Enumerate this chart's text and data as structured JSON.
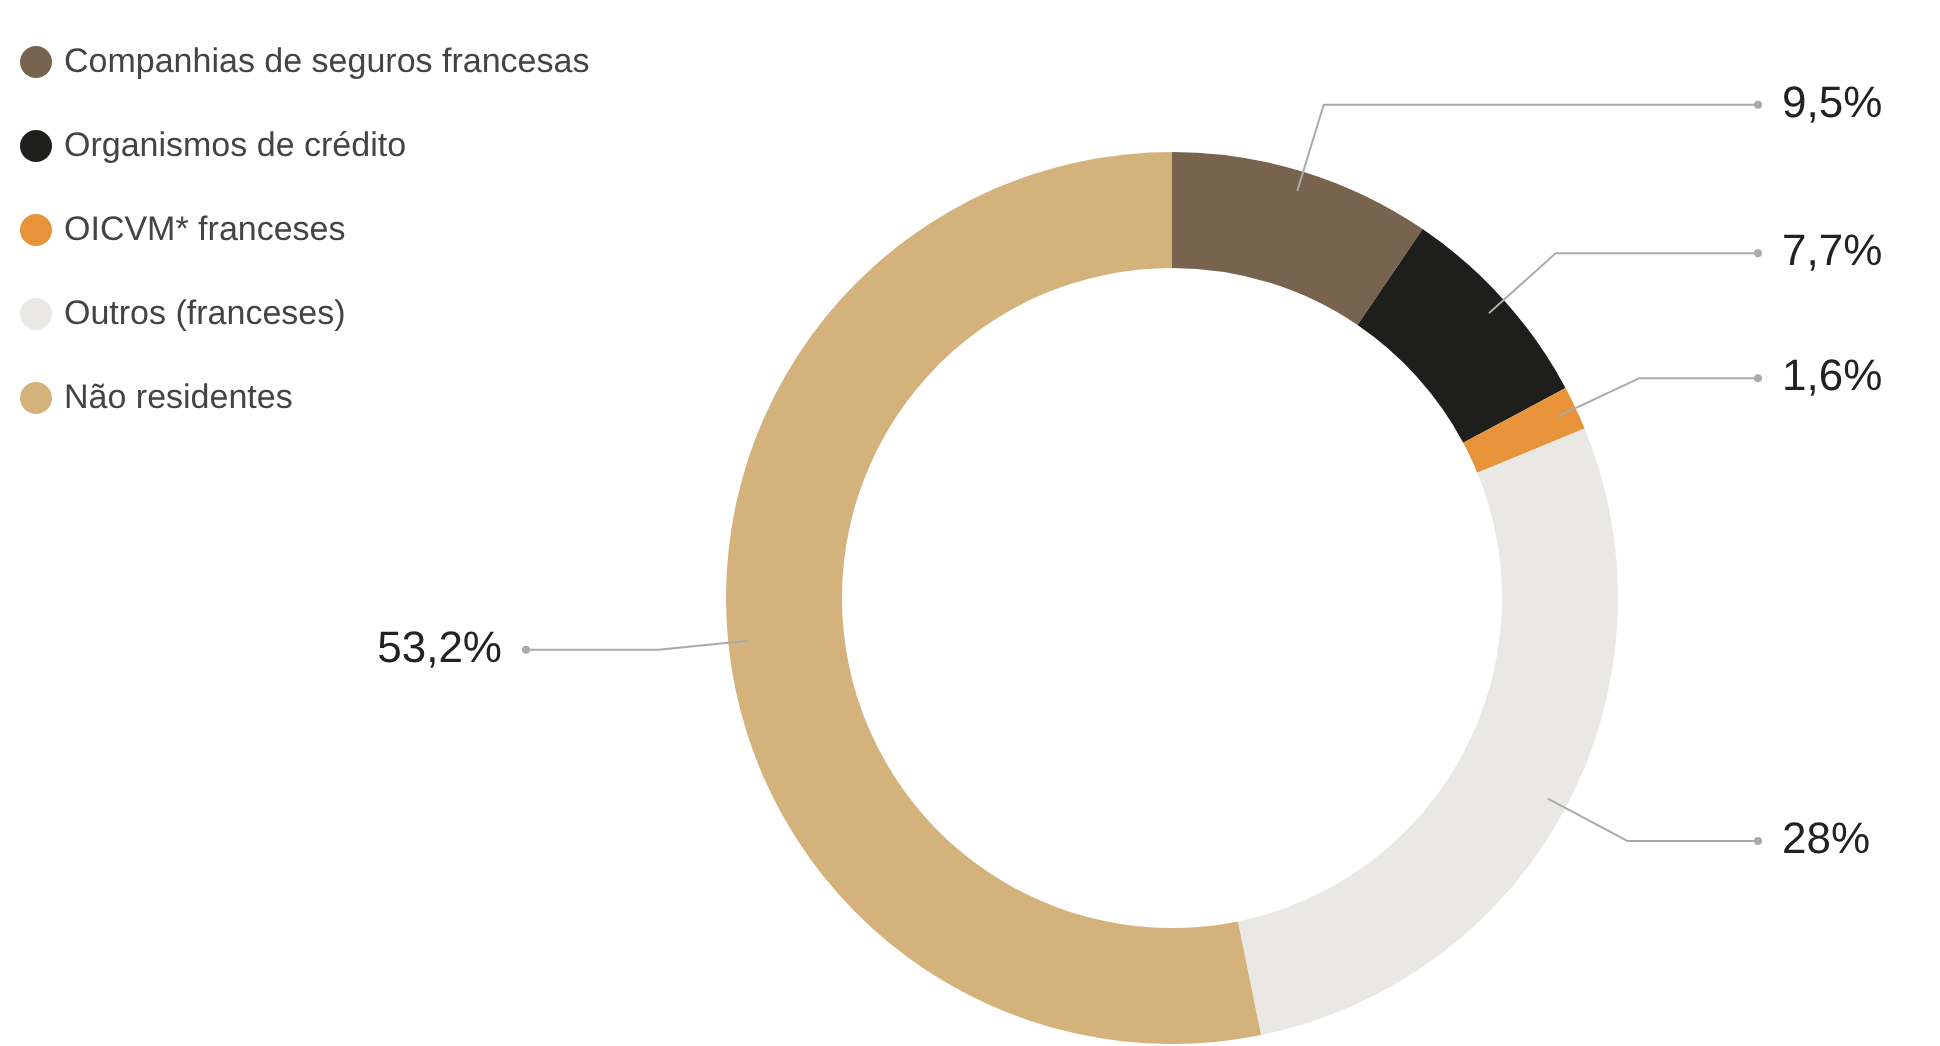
{
  "chart_data": {
    "type": "donut",
    "categories": [
      "Companhias de seguros francesas",
      "Organismos de crédito",
      "OICVM* franceses",
      "Outros (franceses)",
      "Não residentes"
    ],
    "values": [
      9.5,
      7.7,
      1.6,
      28,
      53.2
    ],
    "colors": [
      "#77634e",
      "#1e1e1c",
      "#e8923a",
      "#e9e8e4",
      "#d3b27b"
    ],
    "value_labels": [
      "9,5%",
      "7,7%",
      "1,6%",
      "28%",
      "53,2%"
    ],
    "legend": "top left"
  }
}
